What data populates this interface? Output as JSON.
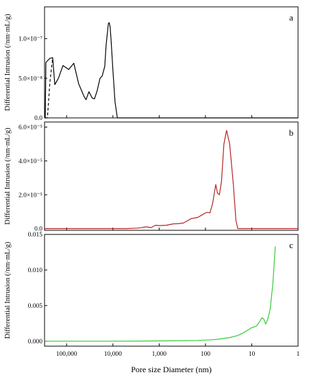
{
  "chart_data": [
    {
      "panel_label": "a",
      "type": "line",
      "xscale": "log",
      "x_axis_reversed": true,
      "xlim": [
        300000,
        1
      ],
      "ylim": [
        0,
        1.4e-07
      ],
      "ylabel": "Differential Intrusion (/nm·mL/g)",
      "yticks": [
        {
          "v": 0,
          "label": "0.0"
        },
        {
          "v": 5e-08,
          "label": "5.0×10⁻⁸"
        },
        {
          "v": 1e-07,
          "label": "1.0×10⁻⁷"
        }
      ],
      "series": [
        {
          "color": "#000000",
          "dash": false,
          "x": [
            290000,
            280000,
            230000,
            200000,
            180000,
            150000,
            120000,
            90000,
            70000,
            55000,
            48000,
            42000,
            38000,
            33000,
            28000,
            25000,
            22000,
            19000,
            17000,
            15000,
            14000,
            13000,
            12500,
            12000,
            11500,
            11000,
            10000,
            9000,
            8000,
            7500,
            7000,
            6500,
            6000,
            5000,
            1
          ],
          "y": [
            0,
            7e-08,
            7.5e-08,
            7.6e-08,
            4.2e-08,
            5e-08,
            6.6e-08,
            6.1e-08,
            6.9e-08,
            4.3e-08,
            3.5e-08,
            2.7e-08,
            2.3e-08,
            3.3e-08,
            2.5e-08,
            2.4e-08,
            3.4e-08,
            5e-08,
            5.3e-08,
            6.5e-08,
            9.2e-08,
            1.1e-07,
            1.19e-07,
            1.2e-07,
            1.15e-07,
            1e-07,
            6e-08,
            2e-08,
            0,
            0,
            0,
            0,
            0,
            0,
            0
          ]
        },
        {
          "color": "#000000",
          "dash": true,
          "x": [
            290000,
            260000,
            230000,
            200000
          ],
          "y": [
            0,
            0,
            4.5e-08,
            7.6e-08
          ]
        }
      ]
    },
    {
      "panel_label": "b",
      "type": "line",
      "xscale": "log",
      "x_axis_reversed": true,
      "xlim": [
        300000,
        1
      ],
      "ylim": [
        -1e-06,
        6.3e-05
      ],
      "ylabel": "Differential Intrusion (/nm·mL/g)",
      "yticks": [
        {
          "v": 0,
          "label": "0.0"
        },
        {
          "v": 2e-05,
          "label": "2.0×10⁻⁵"
        },
        {
          "v": 4e-05,
          "label": "4.0×10⁻⁵"
        },
        {
          "v": 6e-05,
          "label": "6.0×10⁻⁵"
        }
      ],
      "series": [
        {
          "color": "#b22222",
          "dash": false,
          "x": [
            300000,
            10000,
            5000,
            3000,
            2500,
            2000,
            1800,
            1500,
            1200,
            1000,
            700,
            500,
            400,
            300,
            250,
            200,
            150,
            120,
            100,
            90,
            80,
            70,
            60,
            55,
            50,
            45,
            40,
            35,
            30,
            25,
            22,
            20,
            15,
            10,
            5,
            1
          ],
          "y": [
            0,
            0,
            0,
            3e-07,
            5e-07,
            1e-06,
            1e-06,
            6e-07,
            2e-06,
            1.8e-06,
            2e-06,
            2.8e-06,
            2.9e-06,
            3.3e-06,
            4.5e-06,
            6e-06,
            6.5e-06,
            8e-06,
            9.3e-06,
            9.6e-06,
            9.3e-06,
            1.5e-05,
            2.6e-05,
            2.1e-05,
            2e-05,
            2.8e-05,
            5e-05,
            5.8e-05,
            5e-05,
            2.6e-05,
            5e-06,
            0,
            0,
            0,
            0,
            0
          ]
        }
      ]
    },
    {
      "panel_label": "c",
      "type": "line",
      "xscale": "log",
      "x_axis_reversed": true,
      "xlim": [
        300000,
        1
      ],
      "ylim": [
        -0.0007,
        0.015
      ],
      "ylabel": "Differential Intrusion (/nm·mL/g)",
      "xlabel": "Pore size Diameter (nm)",
      "xticks": [
        {
          "v": 100000,
          "label": "100,000"
        },
        {
          "v": 10000,
          "label": "10,000"
        },
        {
          "v": 1000,
          "label": "1,000"
        },
        {
          "v": 100,
          "label": "100"
        },
        {
          "v": 10,
          "label": "10"
        },
        {
          "v": 1,
          "label": "1"
        }
      ],
      "yticks": [
        {
          "v": 0,
          "label": "0.000"
        },
        {
          "v": 0.005,
          "label": "0.005"
        },
        {
          "v": 0.01,
          "label": "0.010"
        },
        {
          "v": 0.015,
          "label": "0.015"
        }
      ],
      "series": [
        {
          "color": "#33cc33",
          "dash": false,
          "x": [
            300000,
            100000,
            10000,
            3000,
            1000,
            300,
            150,
            100,
            70,
            50,
            40,
            30,
            20,
            15,
            10,
            8,
            7,
            6,
            5.5,
            5,
            4.5,
            4,
            3.5,
            3.2,
            3.1
          ],
          "y": [
            0,
            0,
            0,
            1e-05,
            3e-05,
            7e-05,
            0.0001,
            0.00015,
            0.0002,
            0.0003,
            0.0004,
            0.0005,
            0.0008,
            0.0012,
            0.0019,
            0.0021,
            0.0026,
            0.0033,
            0.0031,
            0.0024,
            0.0031,
            0.0045,
            0.008,
            0.012,
            0.0133
          ]
        }
      ]
    }
  ]
}
